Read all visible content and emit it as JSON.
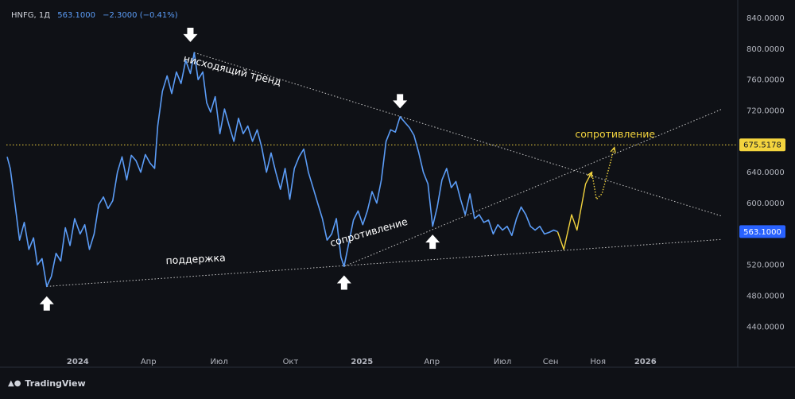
{
  "legend": {
    "symbol": "HNFG, 1Д",
    "price": "563.1000",
    "change": "−2.3000 (−0.41%)"
  },
  "brand": "TradingView",
  "colors": {
    "background": "#0f1116",
    "line": "#5b9cf6",
    "forecast": "#f3d43e",
    "trend": "#c8c8c8",
    "axis_text": "#b2b5be",
    "resistance_level": "#f3d43e",
    "arrows": "#ffffff"
  },
  "chart_data": {
    "type": "line",
    "title": "",
    "xlabel": "",
    "ylabel": "",
    "ylim": [
      410,
      855
    ],
    "x_range": [
      "2023-10-01",
      "2026-04-30"
    ],
    "y_ticks": [
      {
        "value": 840,
        "label": "840.0000"
      },
      {
        "value": 800,
        "label": "800.0000"
      },
      {
        "value": 760,
        "label": "760.0000"
      },
      {
        "value": 720,
        "label": "720.0000"
      },
      {
        "value": 640,
        "label": "640.0000"
      },
      {
        "value": 600,
        "label": "600.0000"
      },
      {
        "value": 520,
        "label": "520.0000"
      },
      {
        "value": 480,
        "label": "480.0000"
      },
      {
        "value": 440,
        "label": "440.0000"
      }
    ],
    "x_ticks": [
      {
        "date": "2024-01-01",
        "label": "2024",
        "bold": true
      },
      {
        "date": "2024-04-01",
        "label": "Апр",
        "bold": false
      },
      {
        "date": "2024-07-01",
        "label": "Июл",
        "bold": false
      },
      {
        "date": "2024-10-01",
        "label": "Окт",
        "bold": false
      },
      {
        "date": "2025-01-01",
        "label": "2025",
        "bold": true
      },
      {
        "date": "2025-04-01",
        "label": "Апр",
        "bold": false
      },
      {
        "date": "2025-07-01",
        "label": "Июл",
        "bold": false
      },
      {
        "date": "2025-09-01",
        "label": "Сен",
        "bold": false
      },
      {
        "date": "2025-11-01",
        "label": "Ноя",
        "bold": false
      },
      {
        "date": "2026-01-01",
        "label": "2026",
        "bold": true
      }
    ],
    "price_labels": [
      {
        "value": 675.5178,
        "label": "675.5178",
        "style": "yellow"
      },
      {
        "value": 563.1,
        "label": "563.1000",
        "style": "blue"
      }
    ],
    "horizontal_levels": [
      {
        "value": 675.5178,
        "style": "dotted-yellow"
      }
    ],
    "series": [
      {
        "style": "price",
        "points": [
          [
            "2023-10-02",
            660
          ],
          [
            "2023-10-06",
            645
          ],
          [
            "2023-10-12",
            600
          ],
          [
            "2023-10-18",
            552
          ],
          [
            "2023-10-24",
            575
          ],
          [
            "2023-10-30",
            540
          ],
          [
            "2023-11-05",
            555
          ],
          [
            "2023-11-10",
            520
          ],
          [
            "2023-11-16",
            528
          ],
          [
            "2023-11-22",
            492
          ],
          [
            "2023-11-28",
            505
          ],
          [
            "2023-12-04",
            535
          ],
          [
            "2023-12-10",
            525
          ],
          [
            "2023-12-16",
            568
          ],
          [
            "2023-12-22",
            545
          ],
          [
            "2023-12-28",
            580
          ],
          [
            "2024-01-04",
            560
          ],
          [
            "2024-01-10",
            572
          ],
          [
            "2024-01-16",
            540
          ],
          [
            "2024-01-22",
            560
          ],
          [
            "2024-01-28",
            598
          ],
          [
            "2024-02-03",
            608
          ],
          [
            "2024-02-09",
            593
          ],
          [
            "2024-02-15",
            603
          ],
          [
            "2024-02-21",
            640
          ],
          [
            "2024-02-27",
            660
          ],
          [
            "2024-03-04",
            630
          ],
          [
            "2024-03-10",
            662
          ],
          [
            "2024-03-16",
            655
          ],
          [
            "2024-03-22",
            640
          ],
          [
            "2024-03-28",
            663
          ],
          [
            "2024-04-03",
            652
          ],
          [
            "2024-04-09",
            645
          ],
          [
            "2024-04-13",
            700
          ],
          [
            "2024-04-19",
            745
          ],
          [
            "2024-04-25",
            765
          ],
          [
            "2024-05-01",
            742
          ],
          [
            "2024-05-07",
            770
          ],
          [
            "2024-05-13",
            755
          ],
          [
            "2024-05-19",
            785
          ],
          [
            "2024-05-25",
            768
          ],
          [
            "2024-05-30",
            795
          ],
          [
            "2024-06-04",
            760
          ],
          [
            "2024-06-10",
            770
          ],
          [
            "2024-06-15",
            730
          ],
          [
            "2024-06-20",
            718
          ],
          [
            "2024-06-26",
            738
          ],
          [
            "2024-07-02",
            690
          ],
          [
            "2024-07-08",
            722
          ],
          [
            "2024-07-14",
            700
          ],
          [
            "2024-07-20",
            680
          ],
          [
            "2024-07-26",
            710
          ],
          [
            "2024-08-01",
            690
          ],
          [
            "2024-08-07",
            700
          ],
          [
            "2024-08-13",
            680
          ],
          [
            "2024-08-19",
            695
          ],
          [
            "2024-08-25",
            672
          ],
          [
            "2024-08-31",
            640
          ],
          [
            "2024-09-06",
            665
          ],
          [
            "2024-09-12",
            640
          ],
          [
            "2024-09-18",
            618
          ],
          [
            "2024-09-24",
            645
          ],
          [
            "2024-09-30",
            605
          ],
          [
            "2024-10-06",
            645
          ],
          [
            "2024-10-12",
            660
          ],
          [
            "2024-10-18",
            670
          ],
          [
            "2024-10-24",
            640
          ],
          [
            "2024-10-30",
            620
          ],
          [
            "2024-11-05",
            600
          ],
          [
            "2024-11-11",
            580
          ],
          [
            "2024-11-17",
            552
          ],
          [
            "2024-11-23",
            560
          ],
          [
            "2024-11-29",
            580
          ],
          [
            "2024-12-05",
            530
          ],
          [
            "2024-12-09",
            518
          ],
          [
            "2024-12-15",
            548
          ],
          [
            "2024-12-21",
            578
          ],
          [
            "2024-12-27",
            590
          ],
          [
            "2025-01-02",
            572
          ],
          [
            "2025-01-08",
            590
          ],
          [
            "2025-01-14",
            615
          ],
          [
            "2025-01-20",
            600
          ],
          [
            "2025-01-26",
            630
          ],
          [
            "2025-02-01",
            680
          ],
          [
            "2025-02-07",
            695
          ],
          [
            "2025-02-13",
            692
          ],
          [
            "2025-02-19",
            712
          ],
          [
            "2025-02-25",
            705
          ],
          [
            "2025-03-03",
            698
          ],
          [
            "2025-03-09",
            688
          ],
          [
            "2025-03-15",
            666
          ],
          [
            "2025-03-21",
            640
          ],
          [
            "2025-03-27",
            625
          ],
          [
            "2025-04-02",
            570
          ],
          [
            "2025-04-08",
            595
          ],
          [
            "2025-04-14",
            630
          ],
          [
            "2025-04-20",
            645
          ],
          [
            "2025-04-26",
            620
          ],
          [
            "2025-05-02",
            628
          ],
          [
            "2025-05-08",
            605
          ],
          [
            "2025-05-14",
            585
          ],
          [
            "2025-05-20",
            612
          ],
          [
            "2025-05-26",
            580
          ],
          [
            "2025-06-01",
            585
          ],
          [
            "2025-06-07",
            575
          ],
          [
            "2025-06-13",
            578
          ],
          [
            "2025-06-19",
            560
          ],
          [
            "2025-06-25",
            572
          ],
          [
            "2025-07-01",
            565
          ],
          [
            "2025-07-07",
            570
          ],
          [
            "2025-07-13",
            558
          ],
          [
            "2025-07-19",
            580
          ],
          [
            "2025-07-25",
            595
          ],
          [
            "2025-07-31",
            585
          ],
          [
            "2025-08-06",
            570
          ],
          [
            "2025-08-12",
            565
          ],
          [
            "2025-08-18",
            570
          ],
          [
            "2025-08-24",
            560
          ],
          [
            "2025-08-30",
            562
          ],
          [
            "2025-09-05",
            565
          ],
          [
            "2025-09-10",
            563
          ]
        ]
      },
      {
        "style": "forecast-solid",
        "points": [
          [
            "2025-09-10",
            563
          ],
          [
            "2025-09-18",
            540
          ],
          [
            "2025-09-28",
            585
          ],
          [
            "2025-10-05",
            565
          ],
          [
            "2025-10-16",
            625
          ],
          [
            "2025-10-24",
            640
          ]
        ]
      },
      {
        "style": "forecast-dotted",
        "points": [
          [
            "2025-10-24",
            640
          ],
          [
            "2025-10-30",
            605
          ],
          [
            "2025-11-06",
            612
          ],
          [
            "2025-11-11",
            630
          ],
          [
            "2025-11-22",
            672
          ]
        ]
      }
    ],
    "trendlines": [
      {
        "name": "downtrend",
        "from": [
          "2024-05-30",
          795
        ],
        "to": [
          "2026-04-10",
          583
        ]
      },
      {
        "name": "support",
        "from": [
          "2023-11-22",
          492
        ],
        "to": [
          "2026-04-10",
          553
        ]
      },
      {
        "name": "resistance-rising",
        "from": [
          "2024-12-09",
          518
        ],
        "to": [
          "2026-04-10",
          722
        ]
      }
    ],
    "annotations": [
      {
        "text": "нисходящий тренд",
        "date": "2024-07-17",
        "value": 768,
        "rotate": 14,
        "color": "#ffffff"
      },
      {
        "text": "сопротивление",
        "date": "2025-01-11",
        "value": 558,
        "rotate": -16,
        "color": "#ffffff"
      },
      {
        "text": "поддержка",
        "date": "2024-06-01",
        "value": 523,
        "rotate": -3,
        "color": "#ffffff"
      },
      {
        "text": "сопротивление",
        "date": "2025-11-23",
        "value": 685,
        "rotate": 0,
        "color": "#f3d43e"
      }
    ],
    "arrows": [
      {
        "date": "2024-05-25",
        "value": 818,
        "dir": "down"
      },
      {
        "date": "2025-02-19",
        "value": 732,
        "dir": "down"
      },
      {
        "date": "2023-11-22",
        "value": 470,
        "dir": "up"
      },
      {
        "date": "2024-12-09",
        "value": 497,
        "dir": "up"
      },
      {
        "date": "2025-04-02",
        "value": 550,
        "dir": "up"
      }
    ]
  }
}
